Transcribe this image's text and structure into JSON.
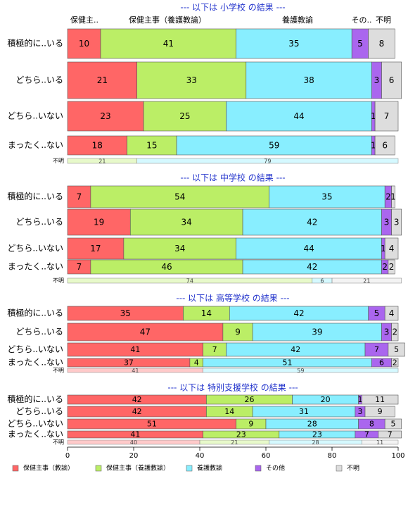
{
  "chart_data": {
    "type": "bar",
    "orientation": "horizontal",
    "stacked": true,
    "xlim": [
      0,
      100
    ],
    "x_ticks": [
      0,
      20,
      40,
      60,
      80,
      100
    ],
    "grid": false,
    "legend_position": "bottom",
    "legend": [
      {
        "name": "保健主事（教諭）",
        "color": "#ff6666"
      },
      {
        "name": "保健主事（養護教諭）",
        "color": "#bbee66"
      },
      {
        "name": "養護教諭",
        "color": "#88eeff"
      },
      {
        "name": "その他",
        "color": "#aa66ee"
      },
      {
        "name": "不明",
        "color": "#dddddd"
      }
    ],
    "top_header_labels": [
      "保健主..",
      "保健主事（養護教諭）",
      "養護教諭",
      "その..",
      "不明"
    ],
    "panels": [
      {
        "title": "--- 以下は 小学校 の結果 ---",
        "rows": [
          {
            "label": "積極的に..いる",
            "values": [
              10,
              41,
              35,
              5,
              8
            ]
          },
          {
            "label": "どちら..いる",
            "values": [
              21,
              33,
              38,
              3,
              6
            ]
          },
          {
            "label": "どちら..いない",
            "values": [
              23,
              25,
              44,
              1,
              7
            ]
          },
          {
            "label": "まったく..ない",
            "values": [
              18,
              15,
              59,
              1,
              6
            ]
          }
        ],
        "unknown": {
          "label": "不明",
          "values": [
            0,
            21,
            79,
            0,
            0
          ],
          "labels": [
            "",
            "21",
            "79",
            "",
            ""
          ]
        }
      },
      {
        "title": "--- 以下は 中学校 の結果 ---",
        "rows": [
          {
            "label": "積極的に..いる",
            "values": [
              7,
              54,
              35,
              2,
              1
            ]
          },
          {
            "label": "どちら..いる",
            "values": [
              19,
              34,
              42,
              3,
              3
            ]
          },
          {
            "label": "どちら..いない",
            "values": [
              17,
              34,
              44,
              1,
              4
            ]
          },
          {
            "label": "まったく..ない",
            "values": [
              7,
              46,
              42,
              2,
              2
            ]
          }
        ],
        "unknown": {
          "label": "不明",
          "values": [
            0,
            74,
            6,
            0,
            21
          ],
          "labels": [
            "",
            "74",
            "6",
            "",
            "21"
          ]
        }
      },
      {
        "title": "--- 以下は 高等学校 の結果 ---",
        "rows": [
          {
            "label": "積極的に..いる",
            "values": [
              35,
              14,
              42,
              5,
              4
            ]
          },
          {
            "label": "どちら..いる",
            "values": [
              47,
              9,
              39,
              3,
              2
            ]
          },
          {
            "label": "どちら..いない",
            "values": [
              41,
              7,
              42,
              7,
              5
            ]
          },
          {
            "label": "まったく..ない",
            "values": [
              37,
              4,
              51,
              6,
              2
            ]
          }
        ],
        "unknown": {
          "label": "不明",
          "values": [
            41,
            0,
            59,
            0,
            0
          ],
          "labels": [
            "41",
            "",
            "59",
            "",
            ""
          ]
        }
      },
      {
        "title": "--- 以下は 特別支援学校 の結果 ---",
        "rows": [
          {
            "label": "積極的に..いる",
            "values": [
              42,
              26,
              20,
              1,
              11
            ]
          },
          {
            "label": "どちら..いる",
            "values": [
              42,
              14,
              31,
              3,
              9
            ]
          },
          {
            "label": "どちら..いない",
            "values": [
              51,
              9,
              28,
              8,
              5
            ]
          },
          {
            "label": "まったく..ない",
            "values": [
              41,
              23,
              23,
              7,
              7
            ]
          }
        ],
        "unknown": {
          "label": "不明",
          "values": [
            40,
            21,
            28,
            0,
            11
          ],
          "labels": [
            "40",
            "21",
            "28",
            "",
            "11"
          ]
        }
      }
    ]
  }
}
